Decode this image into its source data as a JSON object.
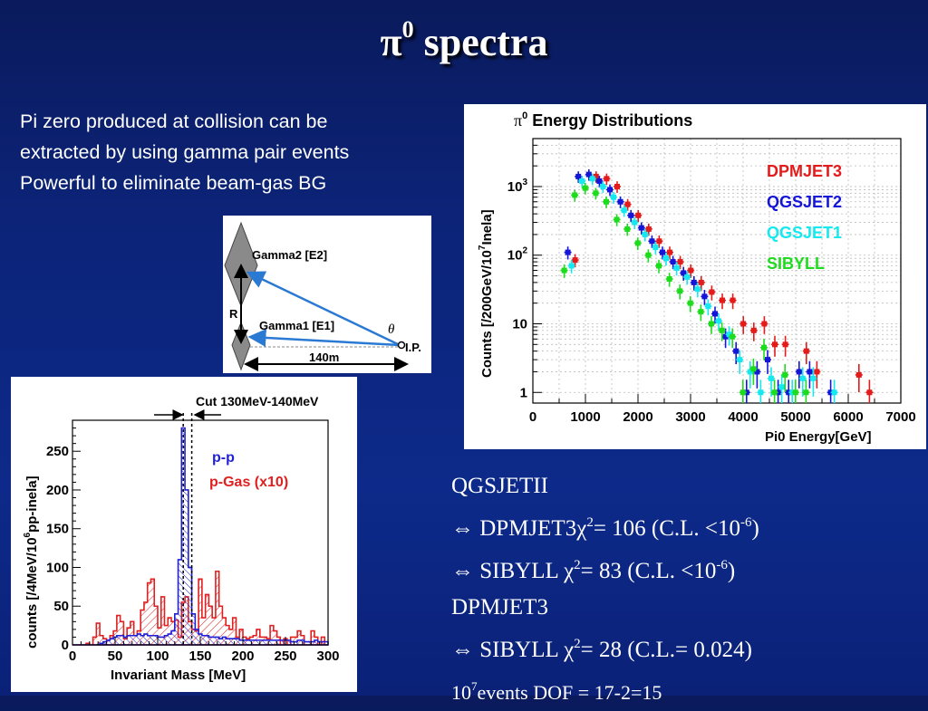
{
  "title": {
    "pi": "π",
    "sup": "0",
    "rest": " spectra"
  },
  "bullets": [
    "Pi zero produced at collision can be",
    "extracted by using gamma pair events",
    "Powerful to eliminate beam-gas BG"
  ],
  "diagram": {
    "gamma2": "Gamma2 [E2]",
    "gamma1": "Gamma1 [E1]",
    "r": "R",
    "theta": "θ",
    "ip": "I.P.",
    "distance": "140m"
  },
  "energy_chart": {
    "title_pi": "π",
    "title_sup": "0",
    "title_rest": " Energy Distributions",
    "ylabel_pre": "Counts  [/200GeV/10",
    "ylabel_sup": "7",
    "ylabel_post": "Inela]",
    "xlabel": "Pi0 Energy[GeV]",
    "xticks": [
      "0",
      "1000",
      "2000",
      "3000",
      "4000",
      "5000",
      "6000",
      "7000"
    ],
    "yticks": [
      {
        "base": "1",
        "sup": ""
      },
      {
        "base": "10",
        "sup": ""
      },
      {
        "base": "10",
        "sup": "2"
      },
      {
        "base": "10",
        "sup": "3"
      }
    ],
    "legend": [
      {
        "name": "DPMJET3",
        "color": "#e31b1b"
      },
      {
        "name": "QGSJET2",
        "color": "#1515d8"
      },
      {
        "name": "QGSJET1",
        "color": "#16e8f0"
      },
      {
        "name": "SIBYLL",
        "color": "#1ddc1d"
      }
    ]
  },
  "mass_chart": {
    "cut_label": "Cut 130MeV-140MeV",
    "ylabel_pre": "counts  [/4MeV/10",
    "ylabel_sup": "6",
    "ylabel_post": "pp-inela]",
    "xlabel": "Invariant Mass [MeV]",
    "xticks": [
      "0",
      "50",
      "100",
      "150",
      "200",
      "250",
      "300"
    ],
    "yticks": [
      "0",
      "50",
      "100",
      "150",
      "200",
      "250"
    ],
    "legend": [
      {
        "name": "p-p",
        "color": "#1f1fd6"
      },
      {
        "name": "p-Gas (x10)",
        "color": "#e02020"
      }
    ]
  },
  "chart_data": [
    {
      "type": "scatter",
      "title": "π0 Energy Distributions",
      "xlabel": "Pi0 Energy[GeV]",
      "ylabel": "Counts [/200GeV/10^7Inela]",
      "xlim": [
        0,
        7000
      ],
      "ylim": [
        0.7,
        5000
      ],
      "yscale": "log",
      "grid": true,
      "legend_position": "top-right",
      "series": [
        {
          "name": "DPMJET3",
          "color": "#e31b1b",
          "x": [
            700,
            1100,
            1300,
            1500,
            1700,
            1900,
            2100,
            2300,
            2500,
            2700,
            2900,
            3100,
            3300,
            3500,
            3700,
            3900,
            4100,
            4300,
            4500,
            4700,
            5100,
            5300,
            6100,
            6300
          ],
          "y": [
            85,
            1400,
            1300,
            1000,
            550,
            380,
            240,
            160,
            110,
            80,
            60,
            40,
            29,
            22,
            22,
            10,
            8,
            10,
            5,
            5,
            4,
            2,
            1.8,
            1
          ]
        },
        {
          "name": "QGSJET2",
          "color": "#1515d8",
          "x": [
            700,
            900,
            1100,
            1300,
            1500,
            1700,
            1900,
            2100,
            2300,
            2500,
            2700,
            2900,
            3100,
            3300,
            3500,
            3700,
            3900,
            4100,
            4300,
            4500,
            4700,
            4900,
            5100,
            5300,
            5700
          ],
          "y": [
            110,
            1400,
            1500,
            1200,
            900,
            600,
            380,
            250,
            160,
            110,
            80,
            55,
            40,
            25,
            14,
            6.5,
            4,
            1,
            2,
            3,
            1,
            1,
            2,
            2,
            1
          ]
        },
        {
          "name": "QGSJET1",
          "color": "#16e8f0",
          "x": [
            700,
            900,
            1100,
            1300,
            1500,
            1700,
            1900,
            2100,
            2300,
            2500,
            2700,
            2900,
            3100,
            3300,
            3500,
            3700,
            3900,
            4100,
            4300,
            4500,
            4700,
            4900,
            5100,
            5300,
            5700
          ],
          "y": [
            70,
            1200,
            1300,
            1000,
            700,
            450,
            300,
            200,
            130,
            90,
            65,
            48,
            32,
            18,
            11,
            7,
            3,
            2,
            1,
            1.6,
            1.2,
            1,
            1.6,
            1.6,
            1
          ]
        },
        {
          "name": "SIBYLL",
          "color": "#1ddc1d",
          "x": [
            700,
            900,
            1100,
            1300,
            1500,
            1700,
            1900,
            2100,
            2300,
            2500,
            2700,
            2900,
            3100,
            3300,
            3500,
            3700,
            3900,
            4100,
            4300,
            4500,
            4700,
            4900,
            5100,
            5300
          ],
          "y": [
            60,
            750,
            950,
            800,
            600,
            330,
            240,
            150,
            100,
            70,
            45,
            30,
            20,
            15,
            10,
            8,
            6.5,
            1,
            2.2,
            4.5,
            1,
            1.8,
            1,
            1
          ]
        }
      ]
    },
    {
      "type": "bar",
      "title": "",
      "xlabel": "Invariant Mass [MeV]",
      "ylabel": "counts [/4MeV/10^6pp-inela]",
      "xlim": [
        0,
        300
      ],
      "ylim": [
        0,
        290
      ],
      "bin_width": 4,
      "annotation": "Cut 130MeV-140MeV",
      "series": [
        {
          "name": "p-p",
          "color": "#1f1fd6",
          "values": [
            0,
            0,
            0,
            0,
            0,
            0,
            0,
            0,
            2,
            4,
            6,
            8,
            10,
            12,
            12,
            10,
            12,
            12,
            12,
            14,
            12,
            14,
            12,
            12,
            12,
            10,
            10,
            12,
            14,
            18,
            40,
            110,
            280,
            200,
            100,
            40,
            20,
            14,
            12,
            12,
            10,
            10,
            10,
            8,
            10,
            8,
            8,
            8,
            8,
            6,
            6,
            6,
            6,
            6,
            6,
            6,
            6,
            6,
            6,
            6,
            6,
            6,
            6,
            6,
            4,
            4,
            6,
            6,
            4,
            4,
            4,
            6,
            4,
            4,
            4
          ]
        },
        {
          "name": "p-Gas (x10)",
          "color": "#e02020",
          "values": [
            0,
            0,
            0,
            0,
            2,
            0,
            10,
            28,
            12,
            8,
            6,
            12,
            18,
            38,
            30,
            8,
            22,
            30,
            12,
            18,
            45,
            55,
            80,
            85,
            50,
            22,
            62,
            25,
            35,
            30,
            32,
            10,
            55,
            62,
            30,
            20,
            18,
            85,
            35,
            65,
            50,
            35,
            95,
            50,
            35,
            25,
            20,
            35,
            10,
            20,
            10,
            8,
            10,
            12,
            20,
            10,
            10,
            8,
            25,
            18,
            10,
            0,
            8,
            0,
            10,
            10,
            18,
            12,
            0,
            0,
            18,
            10,
            0,
            10,
            0
          ]
        }
      ]
    }
  ],
  "results": {
    "line1": "QGSJETII",
    "line2_pre": " ⇔ DPMJET3χ",
    "line2_sup": "2",
    "line2_mid": "= 106 (C.L. <10",
    "line2_sup2": "-6",
    "line2_post": ")",
    "line3_pre": " ⇔ SIBYLL   χ",
    "line3_sup": "2",
    "line3_mid": "= 83 (C.L. <10",
    "line3_sup2": "-6",
    "line3_post": ")",
    "line4": "DPMJET3",
    "line5_pre": " ⇔ SIBYLL   χ",
    "line5_sup": "2",
    "line5_post": "= 28 (C.L.= 0.024)",
    "line6_pre": "10",
    "line6_sup": "7",
    "line6_post": "events DOF = 17-2=15"
  }
}
